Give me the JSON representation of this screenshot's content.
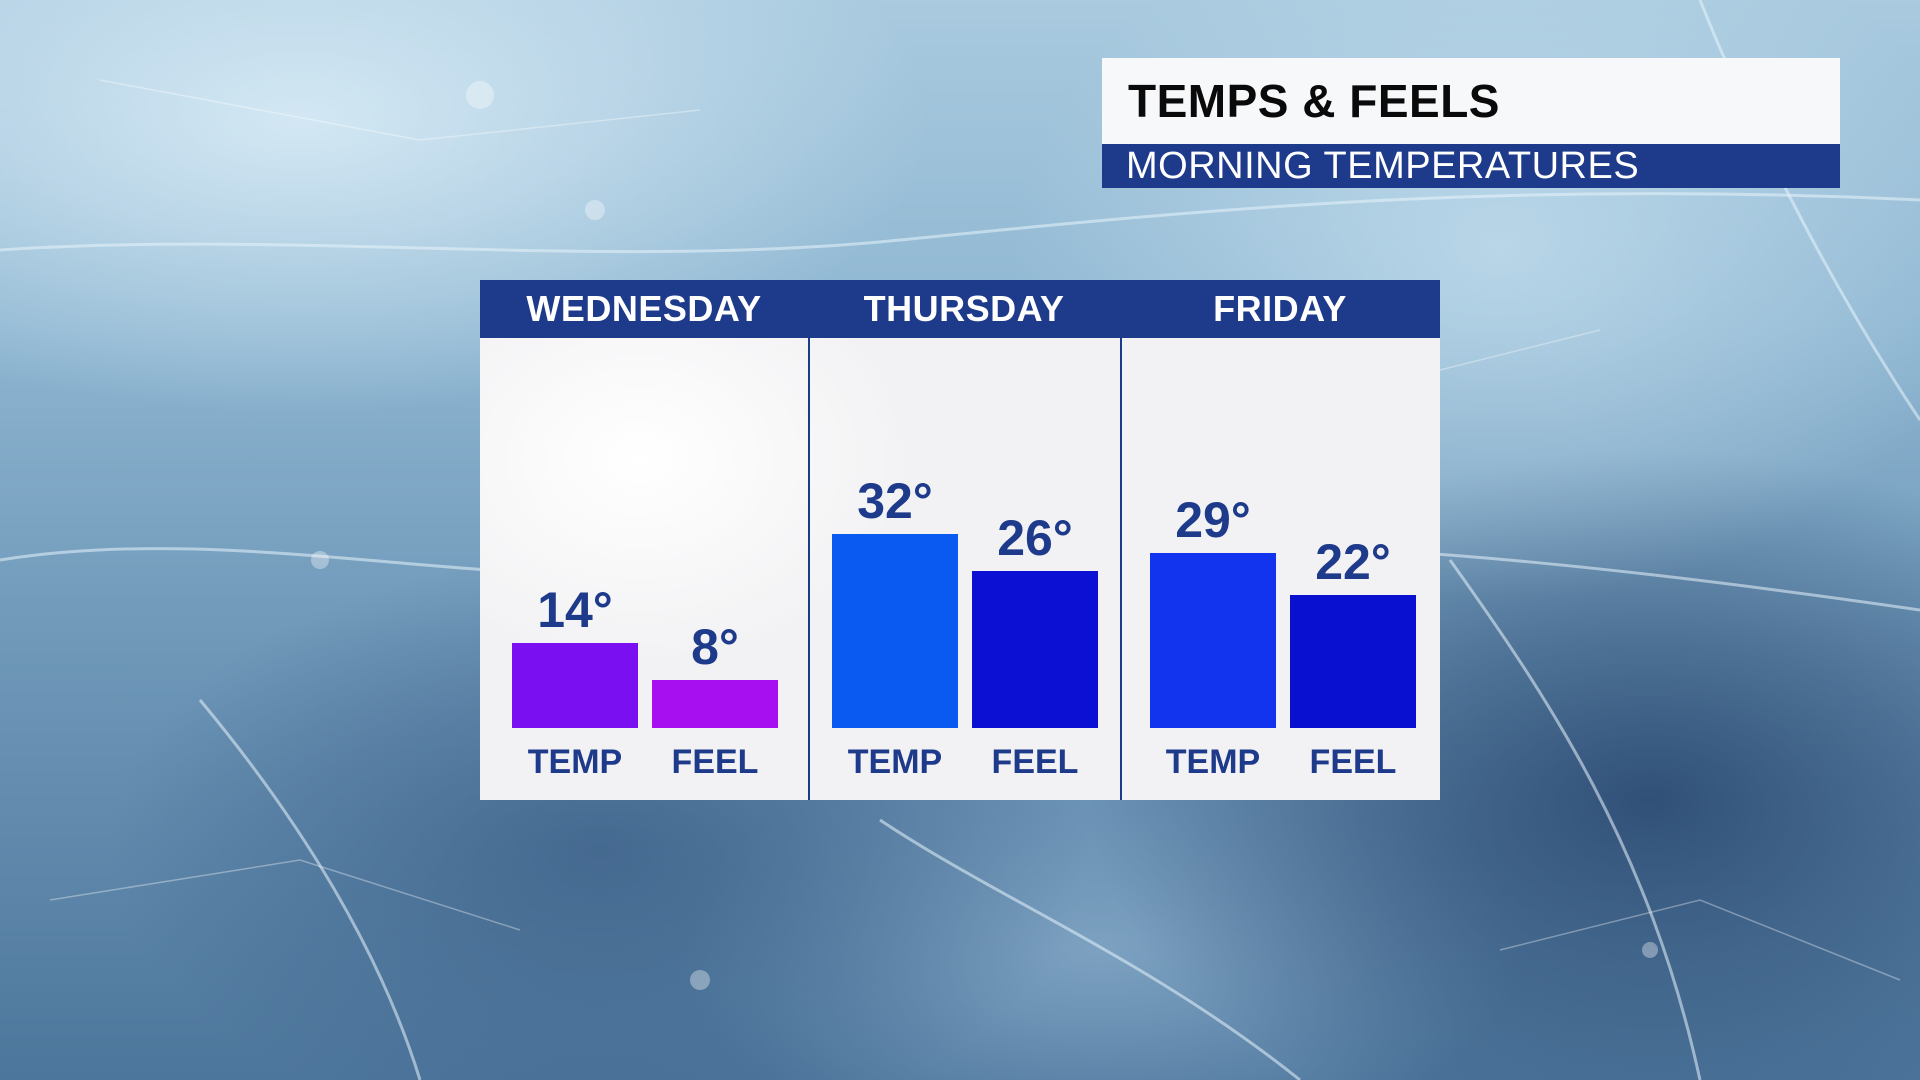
{
  "header": {
    "title": "TEMPS & FEELS",
    "subtitle": "MORNING TEMPERATURES"
  },
  "chart_data": {
    "type": "bar",
    "title": "TEMPS & FEELS",
    "subtitle": "MORNING TEMPERATURES",
    "categories": [
      "WEDNESDAY",
      "THURSDAY",
      "FRIDAY"
    ],
    "series": [
      {
        "name": "TEMP",
        "values": [
          14,
          32,
          29
        ],
        "colors": [
          "#7a10f2",
          "#0a5af2",
          "#1234ee"
        ]
      },
      {
        "name": "FEEL",
        "values": [
          8,
          26,
          22
        ],
        "colors": [
          "#a80ff0",
          "#0c10d2",
          "#0a10d0"
        ]
      }
    ],
    "value_suffix": "°",
    "ylim": [
      0,
      40
    ],
    "xlabel": "",
    "ylabel": "",
    "grid": false
  }
}
